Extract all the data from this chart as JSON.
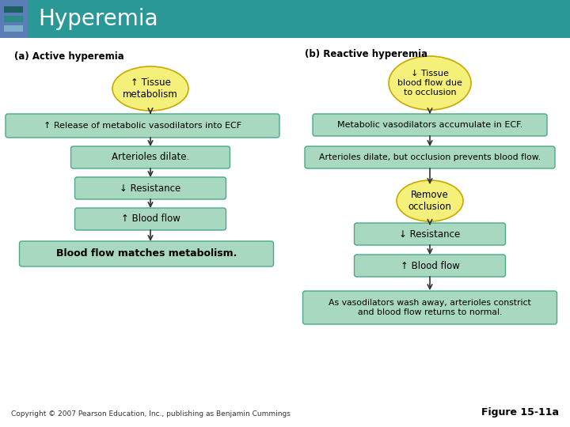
{
  "title": "Hyperemia",
  "title_bg": "#2b9898",
  "title_left_bg": "#5b7db5",
  "title_color": "white",
  "title_fontsize": 20,
  "bg_color": "white",
  "box_fill": "#a8d8c0",
  "box_edge": "#4aaa88",
  "circle_fill": "#f5f07a",
  "circle_edge": "#c8a800",
  "header_a": "(a) Active hyperemia",
  "header_b": "(b) Reactive hyperemia",
  "copyright": "Copyright © 2007 Pearson Education, Inc., publishing as Benjamin Cummings",
  "figure_label": "Figure 15-11a",
  "icon_colors": [
    "#7ab0c8",
    "#2d8888",
    "#1a6060"
  ]
}
